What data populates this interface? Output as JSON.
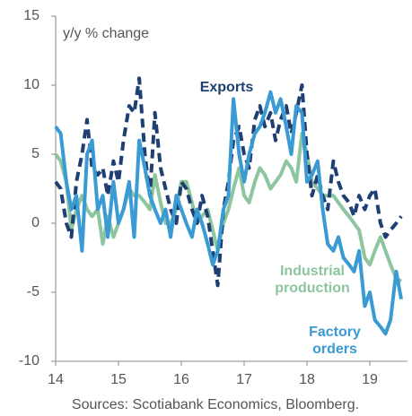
{
  "chart_data": {
    "type": "line",
    "y_label": "y/y % change",
    "source": "Sources: Scotiabank Economics, Bloomberg.",
    "x": [
      14.0,
      14.08,
      14.17,
      14.25,
      14.33,
      14.42,
      14.5,
      14.58,
      14.67,
      14.75,
      14.83,
      14.92,
      15.0,
      15.08,
      15.17,
      15.25,
      15.33,
      15.42,
      15.5,
      15.58,
      15.67,
      15.75,
      15.83,
      15.92,
      16.0,
      16.08,
      16.17,
      16.25,
      16.33,
      16.42,
      16.5,
      16.58,
      16.67,
      16.75,
      16.83,
      16.92,
      17.0,
      17.08,
      17.17,
      17.25,
      17.33,
      17.42,
      17.5,
      17.58,
      17.67,
      17.75,
      17.83,
      17.92,
      18.0,
      18.08,
      18.17,
      18.25,
      18.33,
      18.42,
      18.5,
      18.58,
      18.67,
      18.75,
      18.83,
      18.92,
      19.0,
      19.08,
      19.17,
      19.25,
      19.33,
      19.42,
      19.5
    ],
    "series": [
      {
        "name": "Industrial production",
        "color": "#8cc59e",
        "dashed": false,
        "values": [
          5,
          4.5,
          3,
          -0.5,
          1,
          2,
          1,
          0.5,
          1,
          -1.5,
          0.5,
          -1,
          0,
          1,
          2.5,
          2,
          2,
          1.5,
          1,
          3.5,
          1.5,
          0,
          0,
          1,
          3,
          3,
          1.5,
          0,
          0.5,
          1,
          -0.5,
          -2,
          0,
          1,
          2.5,
          4,
          2,
          1.5,
          3,
          4,
          3.5,
          2.5,
          3,
          3.5,
          4.5,
          4,
          3,
          6.5,
          5,
          3,
          2.5,
          2,
          2,
          2,
          1.5,
          1,
          0.5,
          0,
          -0.5,
          -2.5,
          -3,
          -2,
          -1,
          -2,
          -3,
          -4,
          -4.2
        ]
      },
      {
        "name": "Exports",
        "color": "#1f3f73",
        "dashed": true,
        "values": [
          3,
          2.5,
          0,
          -1,
          3,
          5,
          7.5,
          4,
          3.5,
          4,
          2,
          4.5,
          3,
          6,
          8.5,
          8,
          10.5,
          5,
          2,
          8,
          4,
          2.5,
          1,
          0,
          3,
          2.5,
          1,
          0,
          2,
          0.5,
          -2,
          -4.5,
          1,
          3,
          6,
          7,
          5,
          4,
          7.5,
          8.5,
          7,
          8,
          6,
          7.5,
          8.5,
          6.5,
          8,
          10,
          5,
          2,
          3.5,
          2,
          1,
          4.5,
          3,
          2,
          1.5,
          0.5,
          2,
          1,
          2,
          2.5,
          0,
          -1,
          -0.5,
          0,
          0.5
        ]
      },
      {
        "name": "Factory orders",
        "color": "#3a9ad3",
        "dashed": false,
        "values": [
          7,
          6.5,
          3,
          1,
          2,
          -2,
          5,
          6,
          1,
          2,
          -1,
          3,
          0,
          1,
          3,
          -1,
          6,
          4,
          2,
          1,
          0,
          1,
          -1,
          2,
          1,
          0,
          -1,
          1,
          0,
          -1.5,
          -3,
          -2,
          1,
          2,
          9,
          5,
          3,
          5,
          6.5,
          7,
          8,
          9.5,
          8,
          9,
          7,
          5,
          8.5,
          8,
          3,
          3.5,
          4.5,
          1,
          -1.5,
          -2,
          -1,
          -2.5,
          -3,
          -3.5,
          -2,
          -6,
          -5,
          -7,
          -7.5,
          -8,
          -7,
          -3.5,
          -5.5
        ]
      }
    ],
    "xlim": [
      14,
      19.6
    ],
    "xticks": [
      14,
      15,
      16,
      17,
      18,
      19
    ],
    "ylim": [
      -10,
      15
    ],
    "yticks": [
      -10,
      -5,
      0,
      5,
      10,
      15
    ]
  }
}
